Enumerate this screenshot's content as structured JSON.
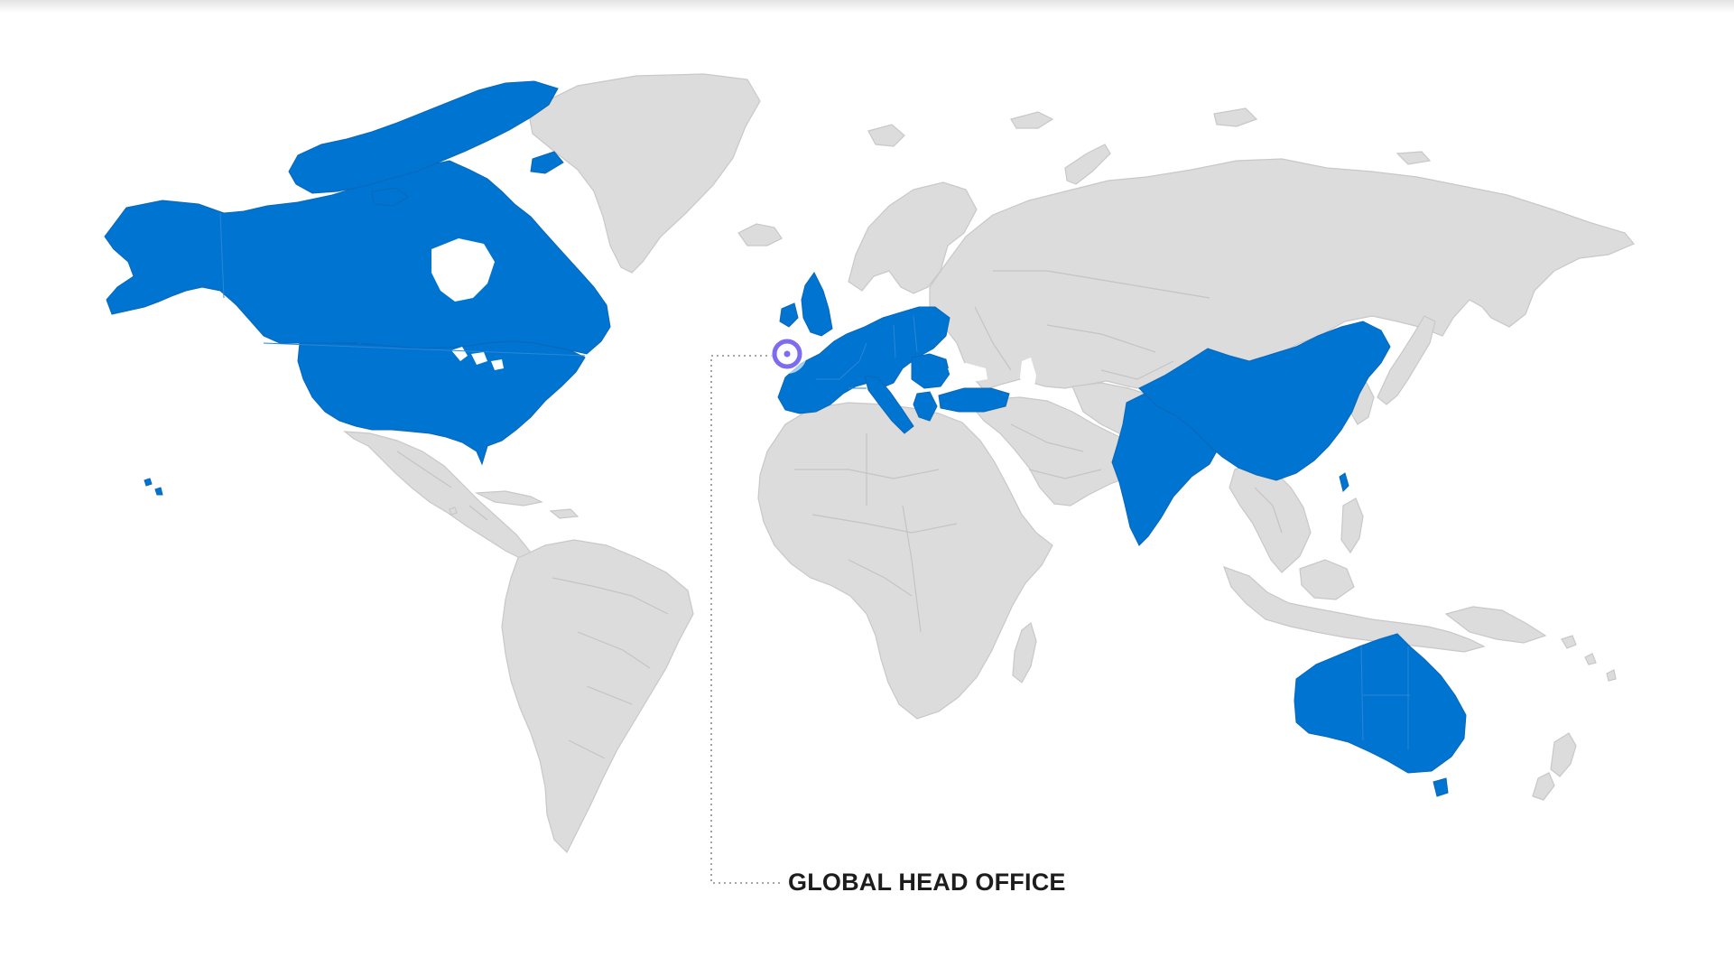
{
  "map": {
    "highlighted_regions": [
      "Canada",
      "United States",
      "United Kingdom",
      "Ireland",
      "Spain",
      "Portugal",
      "France",
      "Germany",
      "Italy",
      "Poland",
      "Romania",
      "Bulgaria",
      "Greece",
      "Turkey",
      "India",
      "China",
      "Australia"
    ],
    "colors": {
      "highlight": "#0074d1",
      "land": "#dcdcdc",
      "marker": "#7b6cf0",
      "leader_line": "#8a8a8a",
      "label_text": "#1d1d1d"
    },
    "marker_icon": "location-ring-icon"
  },
  "hq": {
    "label": "GLOBAL HEAD OFFICE"
  }
}
